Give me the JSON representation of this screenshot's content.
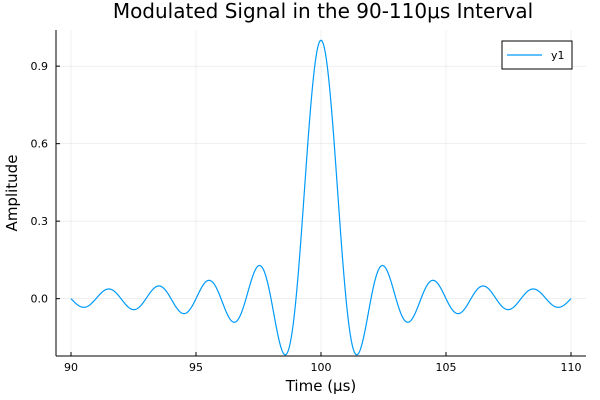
{
  "chart_data": {
    "type": "line",
    "title": "Modulated Signal in the 90-110μs Interval",
    "xlabel": "Time (μs)",
    "ylabel": "Amplitude",
    "xlim": [
      89.4,
      110.6
    ],
    "ylim": [
      -0.222,
      1.04
    ],
    "x_ticks": [
      90,
      95,
      100,
      105,
      110
    ],
    "x_tick_labels": [
      "90",
      "95",
      "100",
      "105",
      "110"
    ],
    "y_ticks": [
      0.0,
      0.3,
      0.6,
      0.9
    ],
    "y_tick_labels": [
      "0.0",
      "0.3",
      "0.6",
      "0.9"
    ],
    "grid": true,
    "legend_position": "top-right",
    "series": [
      {
        "name": "y1",
        "color": "#009AF9",
        "function": "sinc",
        "center": 100,
        "period": 1.0,
        "peak": 1.0,
        "x_range": [
          90,
          110
        ],
        "peaks_right_of_center": [
          {
            "x": 101.43,
            "y": 0.128
          },
          {
            "x": 102.46,
            "y": 0.0707
          },
          {
            "x": 103.47,
            "y": 0.049
          },
          {
            "x": 104.47,
            "y": 0.0375
          },
          {
            "x": 105.48,
            "y": 0.0304
          },
          {
            "x": 106.48,
            "y": 0.0255
          },
          {
            "x": 107.48,
            "y": 0.022
          },
          {
            "x": 108.48,
            "y": 0.0193
          },
          {
            "x": 109.48,
            "y": 0.0172
          }
        ],
        "troughs_right_of_center": [
          {
            "x": 100.0,
            "y": 1.0
          },
          {
            "x": 100.89,
            "y": -0.217
          },
          {
            "x": 101.94,
            "y": -0.0913
          },
          {
            "x": 102.96,
            "y": -0.0579
          },
          {
            "x": 103.97,
            "y": -0.0424
          },
          {
            "x": 104.97,
            "y": -0.0335
          },
          {
            "x": 105.98,
            "y": -0.0277
          },
          {
            "x": 106.98,
            "y": -0.0236
          },
          {
            "x": 107.98,
            "y": -0.0205
          },
          {
            "x": 108.98,
            "y": -0.0182
          },
          {
            "x": 109.98,
            "y": -0.0163
          }
        ]
      }
    ]
  }
}
